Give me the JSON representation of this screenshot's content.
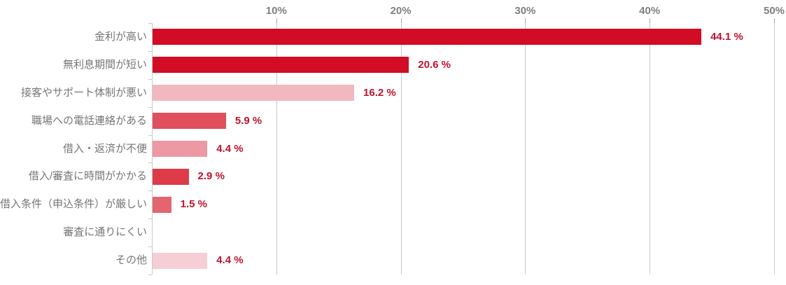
{
  "chart_data": {
    "type": "bar",
    "orientation": "horizontal",
    "title": "",
    "xlabel": "",
    "ylabel": "",
    "xlim": [
      0,
      50
    ],
    "grid": true,
    "tick_position": "top",
    "x_ticks": [
      {
        "value": 10,
        "label": "10%"
      },
      {
        "value": 20,
        "label": "20%"
      },
      {
        "value": 30,
        "label": "30%"
      },
      {
        "value": 40,
        "label": "40%"
      },
      {
        "value": 50,
        "label": "50%"
      }
    ],
    "categories": [
      "金利が高い",
      "無利息期間が短い",
      "接客やサポート体制が悪い",
      "職場への電話連絡がある",
      "借入・返済が不便",
      "借入/審査に時間がかかる",
      "借入条件（申込条件）が厳しい",
      "審査に通りにくい",
      "その他"
    ],
    "values": [
      44.1,
      20.6,
      16.2,
      5.9,
      4.4,
      2.9,
      1.5,
      0,
      4.4
    ],
    "value_labels": [
      "44.1 %",
      "20.6 %",
      "16.2 %",
      "5.9 %",
      "4.4 %",
      "2.9 %",
      "1.5 %",
      "",
      "4.4 %"
    ],
    "bar_colors": [
      "#d10c24",
      "#d10c24",
      "#f2b8c0",
      "#df4f5e",
      "#ec99a3",
      "#de3b49",
      "#e26570",
      "#ffffff",
      "#f6ced5"
    ],
    "colors": {
      "value_label_text": "#c0122d",
      "tick_label_text": "#7f7f7f",
      "category_label_text": "#757575",
      "gridline": "#c9c9c9",
      "axis_line": "#c9c9c9"
    }
  }
}
